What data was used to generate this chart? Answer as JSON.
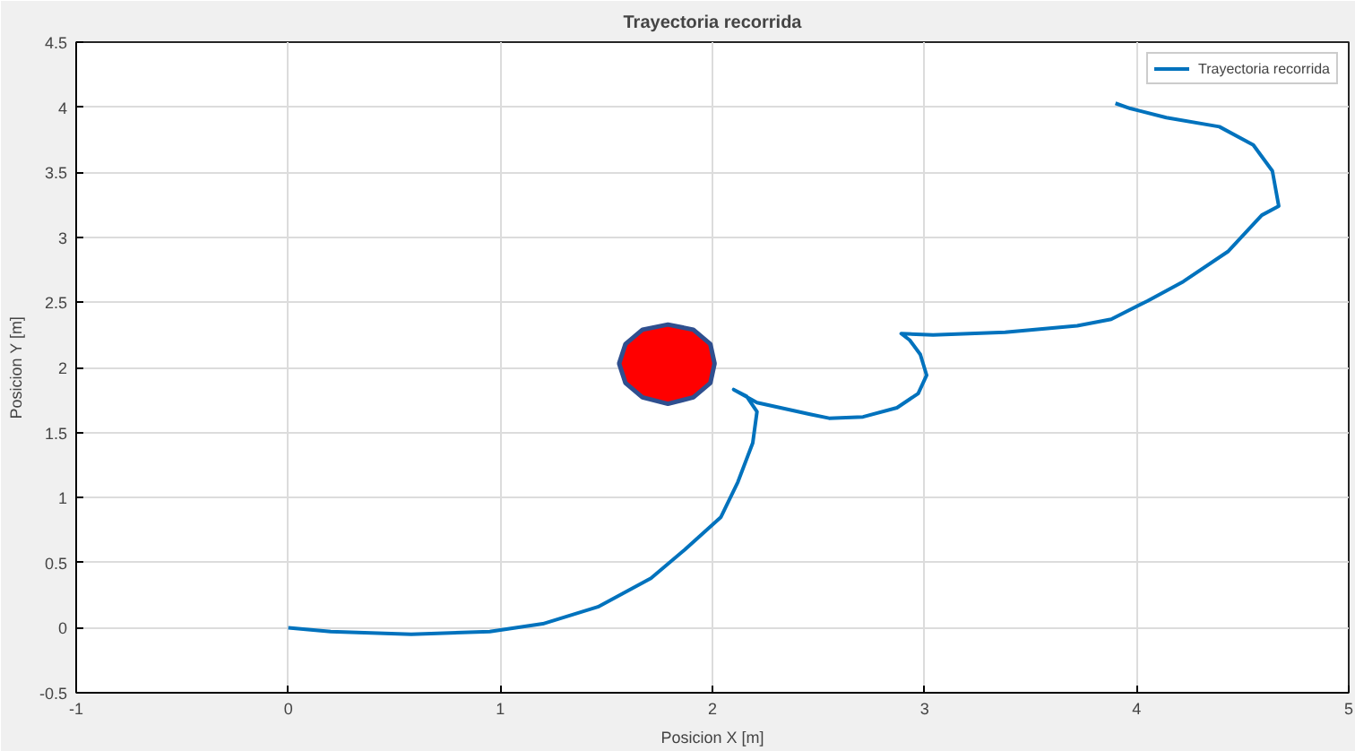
{
  "chart_data": {
    "type": "line",
    "title": "Trayectoria recorrida",
    "xlabel": "Posicion X [m]",
    "ylabel": "Posicion Y [m]",
    "xlim": [
      -1,
      5
    ],
    "ylim": [
      -0.5,
      4.5
    ],
    "xticks": [
      -1,
      0,
      1,
      2,
      3,
      4,
      5
    ],
    "yticks": [
      -0.5,
      0,
      0.5,
      1,
      1.5,
      2,
      2.5,
      3,
      3.5,
      4,
      4.5
    ],
    "grid": true,
    "legend": "top right",
    "marker": "none",
    "line_style": "solid",
    "series": [
      {
        "name": "Trayectoria recorrida",
        "color": "#0072bd",
        "x": [
          0,
          0.2,
          0.58,
          0.95,
          1.2,
          1.46,
          1.71,
          1.87,
          2.04,
          2.12,
          2.19,
          2.21,
          2.16,
          2.1,
          2.21,
          2.46,
          2.55,
          2.71,
          2.87,
          2.97,
          3.01,
          2.98,
          2.93,
          2.89,
          3.04,
          3.38,
          3.72,
          3.88,
          4.05,
          4.22,
          4.43,
          4.59,
          4.67,
          4.64,
          4.55,
          4.39,
          4.14,
          3.97,
          3.9
        ],
        "values": [
          0,
          -0.03,
          -0.05,
          -0.03,
          0.03,
          0.16,
          0.38,
          0.6,
          0.85,
          1.12,
          1.42,
          1.66,
          1.78,
          1.83,
          1.73,
          1.64,
          1.61,
          1.62,
          1.69,
          1.8,
          1.94,
          2.1,
          2.21,
          2.26,
          2.25,
          2.27,
          2.32,
          2.37,
          2.51,
          2.66,
          2.89,
          3.17,
          3.24,
          3.51,
          3.71,
          3.85,
          3.92,
          3.99,
          4.03
        ]
      },
      {
        "type": "area",
        "color": "#ff0000",
        "x": [
          1.79,
          1.91,
          1.99,
          2.01,
          1.99,
          1.91,
          1.79,
          1.67,
          1.59,
          1.56,
          1.59,
          1.67
        ],
        "values": [
          2.33,
          2.29,
          2.18,
          2.03,
          1.88,
          1.77,
          1.72,
          1.77,
          1.88,
          2.03,
          2.18,
          2.29
        ]
      }
    ]
  }
}
